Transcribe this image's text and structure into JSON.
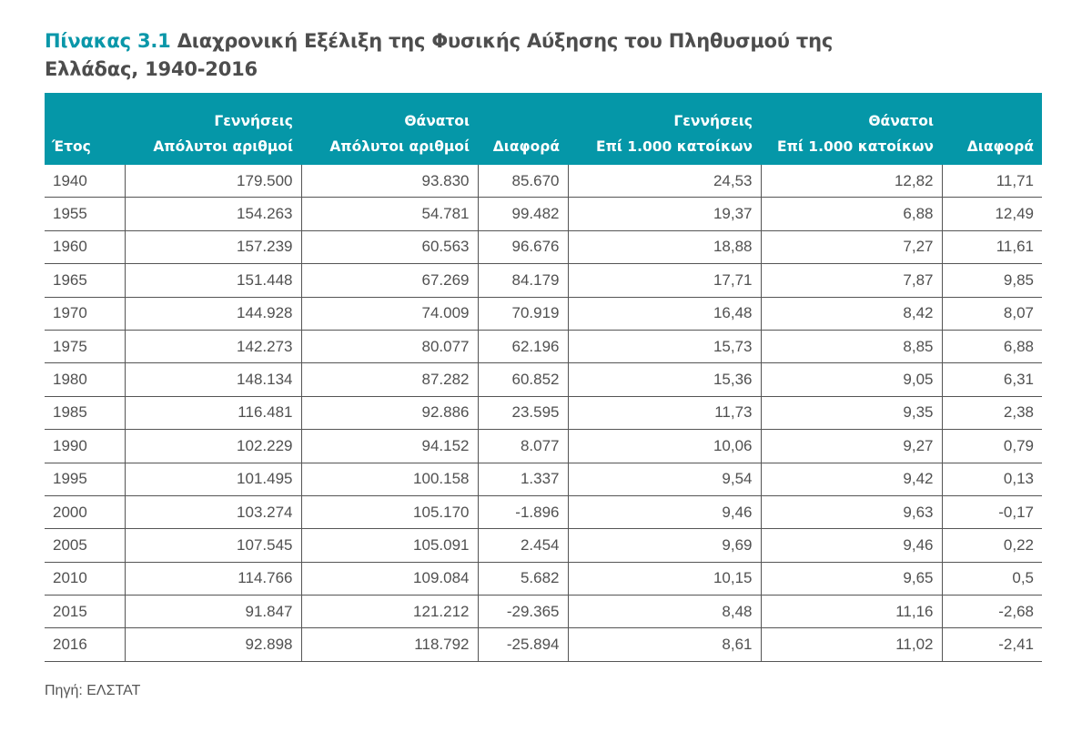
{
  "title": {
    "label": "Πίνακας 3.1",
    "text": "Διαχρονική Εξέλιξη της Φυσικής Αύξησης του Πληθυσμού της Ελλάδας, 1940-2016"
  },
  "colors": {
    "header_bg": "#0597a8",
    "title_label": "#0a97a9",
    "text": "#4d4d4d"
  },
  "table": {
    "header_row1": [
      "",
      "Γεννήσεις",
      "Θάνατοι",
      "",
      "Γεννήσεις",
      "Θάνατοι",
      ""
    ],
    "header_row2": [
      "Έτος",
      "Απόλυτοι αριθμοί",
      "Απόλυτοι αριθμοί",
      "Διαφορά",
      "Επί 1.000 κατοίκων",
      "Επί 1.000 κατοίκων",
      "Διαφορά"
    ],
    "rows": [
      [
        "1940",
        "179.500",
        "93.830",
        "85.670",
        "24,53",
        "12,82",
        "11,71"
      ],
      [
        "1955",
        "154.263",
        "54.781",
        "99.482",
        "19,37",
        "6,88",
        "12,49"
      ],
      [
        "1960",
        "157.239",
        "60.563",
        "96.676",
        "18,88",
        "7,27",
        "11,61"
      ],
      [
        "1965",
        "151.448",
        "67.269",
        "84.179",
        "17,71",
        "7,87",
        "9,85"
      ],
      [
        "1970",
        "144.928",
        "74.009",
        "70.919",
        "16,48",
        "8,42",
        "8,07"
      ],
      [
        "1975",
        "142.273",
        "80.077",
        "62.196",
        "15,73",
        "8,85",
        "6,88"
      ],
      [
        "1980",
        "148.134",
        "87.282",
        "60.852",
        "15,36",
        "9,05",
        "6,31"
      ],
      [
        "1985",
        "116.481",
        "92.886",
        "23.595",
        "11,73",
        "9,35",
        "2,38"
      ],
      [
        "1990",
        "102.229",
        "94.152",
        "8.077",
        "10,06",
        "9,27",
        "0,79"
      ],
      [
        "1995",
        "101.495",
        "100.158",
        "1.337",
        "9,54",
        "9,42",
        "0,13"
      ],
      [
        "2000",
        "103.274",
        "105.170",
        "-1.896",
        "9,46",
        "9,63",
        "-0,17"
      ],
      [
        "2005",
        "107.545",
        "105.091",
        "2.454",
        "9,69",
        "9,46",
        "0,22"
      ],
      [
        "2010",
        "114.766",
        "109.084",
        "5.682",
        "10,15",
        "9,65",
        "0,5"
      ],
      [
        "2015",
        "91.847",
        "121.212",
        "-29.365",
        "8,48",
        "11,16",
        "-2,68"
      ],
      [
        "2016",
        "92.898",
        "118.792",
        "-25.894",
        "8,61",
        "11,02",
        "-2,41"
      ]
    ]
  },
  "source": "Πηγή: ΕΛΣΤΑΤ"
}
